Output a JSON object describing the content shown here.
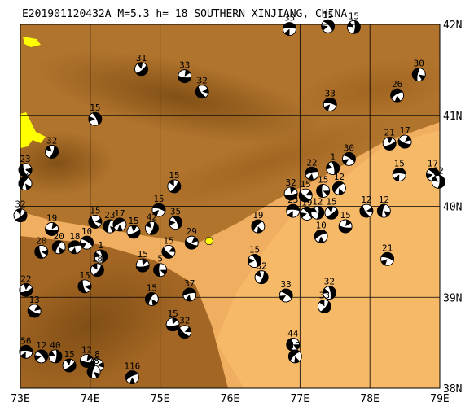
{
  "title": "E201901120432A M=5.3 h= 18 SOUTHERN XINJIANG, CHINA",
  "colors": {
    "lowland": "#f2b060",
    "highland_dark": "#7a4a12",
    "grid": "#000000",
    "lake": "#ffff00",
    "epicenter": "#ffff00"
  },
  "x_ticks": [
    "73E",
    "74E",
    "75E",
    "76E",
    "77E",
    "78E",
    "79E"
  ],
  "y_ticks": [
    "42N",
    "41N",
    "40N",
    "39N",
    "38N"
  ],
  "extent": {
    "lon": [
      73,
      79
    ],
    "lat": [
      38,
      42
    ]
  },
  "epicenter": {
    "lon": 75.7,
    "lat": 39.62
  },
  "mechanisms": [
    {
      "lon": 76.85,
      "lat": 41.95,
      "depth": "35"
    },
    {
      "lon": 77.4,
      "lat": 41.98,
      "depth": "15"
    },
    {
      "lon": 77.77,
      "lat": 41.97,
      "depth": "15"
    },
    {
      "lon": 74.73,
      "lat": 41.51,
      "depth": "31"
    },
    {
      "lon": 75.35,
      "lat": 41.43,
      "depth": "33"
    },
    {
      "lon": 75.6,
      "lat": 41.26,
      "depth": "32"
    },
    {
      "lon": 78.7,
      "lat": 41.45,
      "depth": "30"
    },
    {
      "lon": 78.39,
      "lat": 41.22,
      "depth": "26"
    },
    {
      "lon": 77.43,
      "lat": 41.12,
      "depth": "33"
    },
    {
      "lon": 74.07,
      "lat": 40.96,
      "depth": "15"
    },
    {
      "lon": 73.45,
      "lat": 40.6,
      "depth": "32"
    },
    {
      "lon": 78.28,
      "lat": 40.69,
      "depth": "21"
    },
    {
      "lon": 78.5,
      "lat": 40.71,
      "depth": "17"
    },
    {
      "lon": 73.07,
      "lat": 40.4,
      "depth": "23"
    },
    {
      "lon": 73.07,
      "lat": 40.25,
      "depth": "32"
    },
    {
      "lon": 77.17,
      "lat": 40.36,
      "depth": "22"
    },
    {
      "lon": 77.7,
      "lat": 40.52,
      "depth": "30"
    },
    {
      "lon": 77.47,
      "lat": 40.42,
      "depth": "1"
    },
    {
      "lon": 75.2,
      "lat": 40.22,
      "depth": "15"
    },
    {
      "lon": 76.87,
      "lat": 40.14,
      "depth": "32"
    },
    {
      "lon": 77.08,
      "lat": 40.12,
      "depth": "15"
    },
    {
      "lon": 77.33,
      "lat": 40.17,
      "depth": "15"
    },
    {
      "lon": 77.56,
      "lat": 40.2,
      "depth": "12"
    },
    {
      "lon": 78.42,
      "lat": 40.35,
      "depth": "15"
    },
    {
      "lon": 78.9,
      "lat": 40.35,
      "depth": "17"
    },
    {
      "lon": 78.98,
      "lat": 40.27,
      "depth": "12"
    },
    {
      "lon": 73.0,
      "lat": 39.9,
      "depth": "32"
    },
    {
      "lon": 73.45,
      "lat": 39.75,
      "depth": "19"
    },
    {
      "lon": 74.07,
      "lat": 39.83,
      "depth": "15"
    },
    {
      "lon": 74.28,
      "lat": 39.78,
      "depth": "23"
    },
    {
      "lon": 74.42,
      "lat": 39.8,
      "depth": "17"
    },
    {
      "lon": 74.98,
      "lat": 39.96,
      "depth": "15"
    },
    {
      "lon": 75.22,
      "lat": 39.82,
      "depth": "35"
    },
    {
      "lon": 74.88,
      "lat": 39.76,
      "depth": "42"
    },
    {
      "lon": 74.62,
      "lat": 39.72,
      "depth": "15"
    },
    {
      "lon": 75.45,
      "lat": 39.6,
      "depth": "29"
    },
    {
      "lon": 73.3,
      "lat": 39.5,
      "depth": "20"
    },
    {
      "lon": 73.55,
      "lat": 39.55,
      "depth": "20"
    },
    {
      "lon": 73.78,
      "lat": 39.55,
      "depth": "18"
    },
    {
      "lon": 73.95,
      "lat": 39.6,
      "depth": "10"
    },
    {
      "lon": 74.15,
      "lat": 39.45,
      "depth": "1"
    },
    {
      "lon": 74.1,
      "lat": 39.3,
      "depth": "18"
    },
    {
      "lon": 74.75,
      "lat": 39.35,
      "depth": "15"
    },
    {
      "lon": 75.12,
      "lat": 39.5,
      "depth": "15"
    },
    {
      "lon": 75.0,
      "lat": 39.3,
      "depth": "5"
    },
    {
      "lon": 76.4,
      "lat": 39.78,
      "depth": "19"
    },
    {
      "lon": 76.9,
      "lat": 39.95,
      "depth": "23"
    },
    {
      "lon": 77.1,
      "lat": 39.92,
      "depth": "19"
    },
    {
      "lon": 77.25,
      "lat": 39.93,
      "depth": "12"
    },
    {
      "lon": 77.45,
      "lat": 39.93,
      "depth": "15"
    },
    {
      "lon": 77.65,
      "lat": 39.78,
      "depth": "15"
    },
    {
      "lon": 77.95,
      "lat": 39.95,
      "depth": "12"
    },
    {
      "lon": 78.2,
      "lat": 39.95,
      "depth": "12"
    },
    {
      "lon": 77.3,
      "lat": 39.67,
      "depth": "10"
    },
    {
      "lon": 78.25,
      "lat": 39.42,
      "depth": "21"
    },
    {
      "lon": 76.35,
      "lat": 39.4,
      "depth": "15"
    },
    {
      "lon": 76.45,
      "lat": 39.22,
      "depth": "32"
    },
    {
      "lon": 73.08,
      "lat": 39.08,
      "depth": "22"
    },
    {
      "lon": 73.2,
      "lat": 38.85,
      "depth": "13"
    },
    {
      "lon": 73.92,
      "lat": 39.12,
      "depth": "15"
    },
    {
      "lon": 74.88,
      "lat": 38.98,
      "depth": "15"
    },
    {
      "lon": 75.42,
      "lat": 39.03,
      "depth": "37"
    },
    {
      "lon": 76.8,
      "lat": 39.02,
      "depth": "33"
    },
    {
      "lon": 77.42,
      "lat": 39.05,
      "depth": "32"
    },
    {
      "lon": 77.35,
      "lat": 38.9,
      "depth": "33"
    },
    {
      "lon": 75.18,
      "lat": 38.7,
      "depth": "15"
    },
    {
      "lon": 75.35,
      "lat": 38.62,
      "depth": "32"
    },
    {
      "lon": 76.9,
      "lat": 38.48,
      "depth": "44"
    },
    {
      "lon": 76.93,
      "lat": 38.35,
      "depth": "19"
    },
    {
      "lon": 73.08,
      "lat": 38.4,
      "depth": "56"
    },
    {
      "lon": 73.3,
      "lat": 38.35,
      "depth": "12"
    },
    {
      "lon": 73.5,
      "lat": 38.35,
      "depth": "40"
    },
    {
      "lon": 73.7,
      "lat": 38.25,
      "depth": "15"
    },
    {
      "lon": 73.95,
      "lat": 38.3,
      "depth": "12"
    },
    {
      "lon": 74.1,
      "lat": 38.25,
      "depth": "8"
    },
    {
      "lon": 74.05,
      "lat": 38.18,
      "depth": "78"
    },
    {
      "lon": 74.6,
      "lat": 38.12,
      "depth": "116"
    }
  ]
}
